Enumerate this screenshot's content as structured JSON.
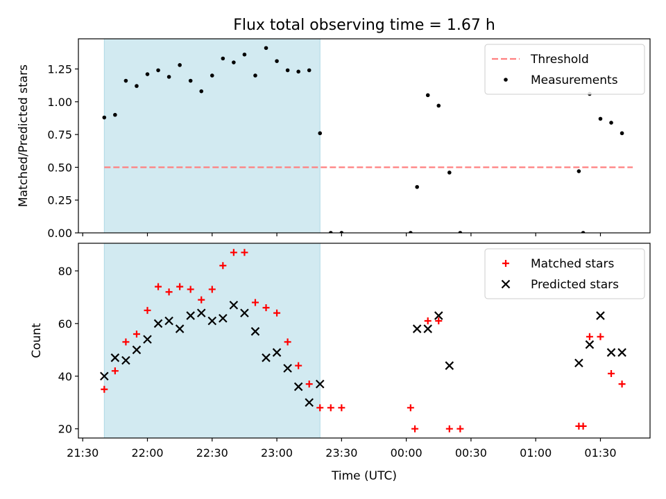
{
  "title": "Flux total observing time = 1.67 h",
  "xlabel": "Time (UTC)",
  "colors": {
    "shade": "#add8e6",
    "threshold": "#ff7f7f",
    "matched": "#ff0000",
    "predicted": "#000000",
    "measurement": "#000000"
  },
  "chart_data": [
    {
      "type": "scatter",
      "ylabel": "Matched/Predicted stars",
      "xlim": [
        "21:28",
        "01:53"
      ],
      "ylim": [
        0,
        1.48
      ],
      "yticks": [
        "0.00",
        "0.25",
        "0.50",
        "0.75",
        "1.00",
        "1.25"
      ],
      "xticks": [
        "21:30",
        "22:00",
        "22:30",
        "23:00",
        "23:30",
        "00:00",
        "00:30",
        "01:00",
        "01:30"
      ],
      "observing_window": [
        "21:40",
        "23:20"
      ],
      "legend_position": "upper right",
      "threshold": {
        "name": "Threshold",
        "value": 0.5,
        "x_range": [
          "21:40",
          "01:45"
        ]
      },
      "series": [
        {
          "name": "Measurements",
          "points": [
            [
              "21:40",
              0.88
            ],
            [
              "21:45",
              0.9
            ],
            [
              "21:50",
              1.16
            ],
            [
              "21:55",
              1.12
            ],
            [
              "22:00",
              1.21
            ],
            [
              "22:05",
              1.24
            ],
            [
              "22:10",
              1.19
            ],
            [
              "22:15",
              1.28
            ],
            [
              "22:20",
              1.16
            ],
            [
              "22:25",
              1.08
            ],
            [
              "22:30",
              1.2
            ],
            [
              "22:35",
              1.33
            ],
            [
              "22:40",
              1.3
            ],
            [
              "22:45",
              1.36
            ],
            [
              "22:50",
              1.2
            ],
            [
              "22:55",
              1.41
            ],
            [
              "23:00",
              1.31
            ],
            [
              "23:05",
              1.24
            ],
            [
              "23:10",
              1.23
            ],
            [
              "23:15",
              1.24
            ],
            [
              "23:20",
              0.76
            ],
            [
              "23:25",
              0.0
            ],
            [
              "23:30",
              0.0
            ],
            [
              "00:02",
              0.0
            ],
            [
              "00:05",
              0.35
            ],
            [
              "00:10",
              1.05
            ],
            [
              "00:15",
              0.97
            ],
            [
              "00:20",
              0.46
            ],
            [
              "00:25",
              0.0
            ],
            [
              "01:20",
              0.47
            ],
            [
              "01:22",
              0.0
            ],
            [
              "01:25",
              1.06
            ],
            [
              "01:30",
              0.87
            ],
            [
              "01:35",
              0.84
            ],
            [
              "01:40",
              0.76
            ]
          ]
        }
      ]
    },
    {
      "type": "scatter",
      "ylabel": "Count",
      "xlim": [
        "21:28",
        "01:53"
      ],
      "ylim": [
        16.5,
        90.5
      ],
      "yticks": [
        "20",
        "40",
        "60",
        "80"
      ],
      "xticks": [
        "21:30",
        "22:00",
        "22:30",
        "23:00",
        "23:30",
        "00:00",
        "00:30",
        "01:00",
        "01:30"
      ],
      "observing_window": [
        "21:40",
        "23:20"
      ],
      "legend_position": "upper right",
      "series": [
        {
          "name": "Matched stars",
          "marker": "plus",
          "points": [
            [
              "21:40",
              35
            ],
            [
              "21:45",
              42
            ],
            [
              "21:50",
              53
            ],
            [
              "21:55",
              56
            ],
            [
              "22:00",
              65
            ],
            [
              "22:05",
              74
            ],
            [
              "22:10",
              72
            ],
            [
              "22:15",
              74
            ],
            [
              "22:20",
              73
            ],
            [
              "22:25",
              69
            ],
            [
              "22:30",
              73
            ],
            [
              "22:35",
              82
            ],
            [
              "22:40",
              87
            ],
            [
              "22:45",
              87
            ],
            [
              "22:50",
              68
            ],
            [
              "22:55",
              66
            ],
            [
              "23:00",
              64
            ],
            [
              "23:05",
              53
            ],
            [
              "23:10",
              44
            ],
            [
              "23:15",
              37
            ],
            [
              "23:20",
              28
            ],
            [
              "23:25",
              28
            ],
            [
              "23:30",
              28
            ],
            [
              "00:02",
              28
            ],
            [
              "00:04",
              20
            ],
            [
              "00:10",
              61
            ],
            [
              "00:15",
              61
            ],
            [
              "00:20",
              20
            ],
            [
              "00:25",
              20
            ],
            [
              "01:20",
              21
            ],
            [
              "01:22",
              21
            ],
            [
              "01:25",
              55
            ],
            [
              "01:30",
              55
            ],
            [
              "01:35",
              41
            ],
            [
              "01:40",
              37
            ]
          ]
        },
        {
          "name": "Predicted stars",
          "marker": "x",
          "points": [
            [
              "21:40",
              40
            ],
            [
              "21:45",
              47
            ],
            [
              "21:50",
              46
            ],
            [
              "21:55",
              50
            ],
            [
              "22:00",
              54
            ],
            [
              "22:05",
              60
            ],
            [
              "22:10",
              61
            ],
            [
              "22:15",
              58
            ],
            [
              "22:20",
              63
            ],
            [
              "22:25",
              64
            ],
            [
              "22:30",
              61
            ],
            [
              "22:35",
              62
            ],
            [
              "22:40",
              67
            ],
            [
              "22:45",
              64
            ],
            [
              "22:50",
              57
            ],
            [
              "22:55",
              47
            ],
            [
              "23:00",
              49
            ],
            [
              "23:05",
              43
            ],
            [
              "23:10",
              36
            ],
            [
              "23:15",
              30
            ],
            [
              "23:20",
              37
            ],
            [
              "00:05",
              58
            ],
            [
              "00:10",
              58
            ],
            [
              "00:15",
              63
            ],
            [
              "00:20",
              44
            ],
            [
              "01:20",
              45
            ],
            [
              "01:25",
              52
            ],
            [
              "01:30",
              63
            ],
            [
              "01:35",
              49
            ],
            [
              "01:40",
              49
            ]
          ]
        }
      ]
    }
  ]
}
